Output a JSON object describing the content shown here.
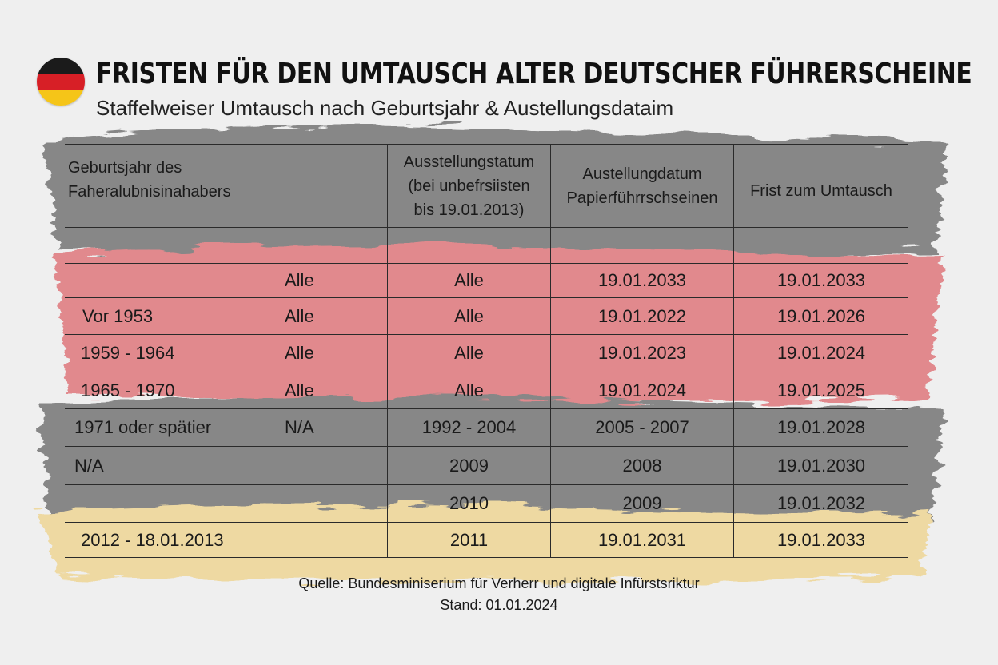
{
  "header": {
    "title": "FRISTEN FÜR DEN UMTAUSCH ALTER DEUTSCHER FÜHRERSCHEINE",
    "subtitle": "Staffelweiser Umtausch nach Geburtsjahr & Austellungsdataim",
    "flag_icon": "german-flag-icon",
    "flag_colors": [
      "#1b1b1b",
      "#d71f26",
      "#f5c518"
    ]
  },
  "colors": {
    "stroke_gray": "#878787",
    "stroke_red": "#e1898d",
    "stroke_gold": "#eed9a2"
  },
  "table": {
    "columns": [
      {
        "line1": "Geburtsjahr des",
        "line2": "Faheralubnisinahabers"
      },
      {
        "line1": "Ausstellungstatum",
        "line2": "(bei unbefrsiisten",
        "line3": "bis 19.01.2013)"
      },
      {
        "line1": "Austellungdatum",
        "line2": "Papierführrschseinen"
      },
      {
        "line1": "Frist zum Umtausch"
      }
    ],
    "rows": [
      {
        "birth": "",
        "sub": "",
        "issued": "",
        "paper": "",
        "deadline": ""
      },
      {
        "birth": "",
        "sub": "Alle",
        "issued": "Alle",
        "paper": "19.01.2033",
        "deadline": "19.01.2033"
      },
      {
        "birth": "Vor 1953",
        "sub": "Alle",
        "issued": "Alle",
        "paper": "19.01.2022",
        "deadline": "19.01.2026"
      },
      {
        "birth": "1959 - 1964",
        "sub": "Alle",
        "issued": "Alle",
        "paper": "19.01.2023",
        "deadline": "19.01.2024"
      },
      {
        "birth": "1965 - 1970",
        "sub": "Alle",
        "issued": "Alle",
        "paper": "19.01.2024",
        "deadline": "19.01.2025"
      },
      {
        "birth": "1971 oder spätier",
        "sub": "N/A",
        "issued": "1992 - 2004",
        "paper": "2005 - 2007",
        "deadline": "19.01.2028"
      },
      {
        "birth": "N/A",
        "sub": "",
        "issued": "2009",
        "paper": "2008",
        "deadline": "19.01.2030"
      },
      {
        "birth": "",
        "sub": "",
        "issued": "2010",
        "paper": "2009",
        "deadline": "19.01.2032"
      },
      {
        "birth": "2012 - 18.01.2013",
        "sub": "",
        "issued": "2011",
        "paper": "19.01.2031",
        "deadline": "19.01.2033"
      }
    ]
  },
  "footer": {
    "source": "Quelle: Bundesminiserium für Verherr und digitale Infürstsriktur",
    "date": "Stand: 01.01.2024"
  }
}
